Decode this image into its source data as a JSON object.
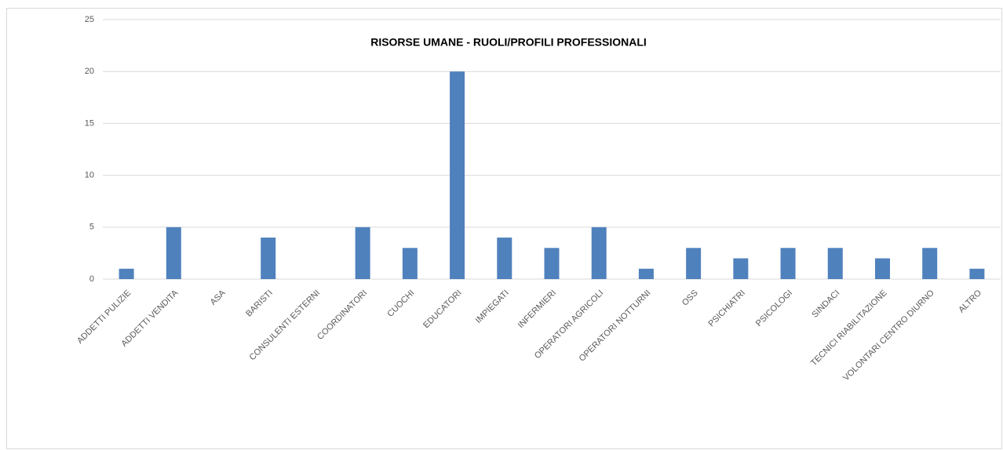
{
  "chart_data": {
    "type": "bar",
    "title": "RISORSE UMANE  - RUOLI/PROFILI PROFESSIONALI",
    "categories": [
      "ADDETTI PULIZIE",
      "ADDETTI VENDITA",
      "ASA",
      "BARISTI",
      "CONSULENTI ESTERNI",
      "COORDINATORI",
      "CUOCHI",
      "EDUCATORI",
      "IMPIEGATI",
      "INFERMIERI",
      "OPERATORI AGRICOLI",
      "OPERATORI NOTTURNI",
      "OSS",
      "PSICHIATRI",
      "PSICOLOGI",
      "SINDACI",
      "TECNICI RIABILITAZIONE",
      "VOLONTARI CENTRO DIURNO",
      "ALTRO"
    ],
    "values": [
      1,
      5,
      0,
      4,
      0,
      5,
      3,
      20,
      4,
      3,
      5,
      1,
      3,
      2,
      3,
      3,
      2,
      3,
      1
    ],
    "color": "#4f81bd",
    "ylim": [
      0,
      25
    ],
    "yticks": [
      0,
      5,
      10,
      15,
      20,
      25
    ],
    "grid": true
  }
}
